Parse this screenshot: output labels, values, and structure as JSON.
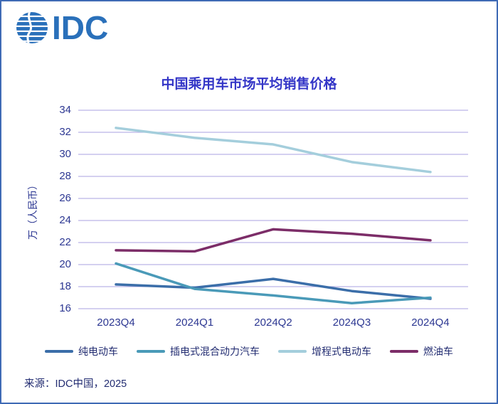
{
  "header": {
    "logo_text": "IDC"
  },
  "chart_data": {
    "type": "line",
    "title": "中国乘用车市场平均销售价格",
    "ylabel": "万（人民币）",
    "categories": [
      "2023Q4",
      "2024Q1",
      "2024Q2",
      "2024Q3",
      "2024Q4"
    ],
    "ylim": [
      16,
      34
    ],
    "ytick_step": 2,
    "grid": "horizontal",
    "legend_position": "bottom",
    "series": [
      {
        "name": "纯电动车",
        "color": "#3b6ea9",
        "values": [
          18.2,
          17.9,
          18.7,
          17.6,
          16.9
        ]
      },
      {
        "name": "插电式混合动力汽车",
        "color": "#4a9ab8",
        "values": [
          20.1,
          17.8,
          17.2,
          16.5,
          17.0
        ]
      },
      {
        "name": "增程式电动车",
        "color": "#a4cedc",
        "values": [
          32.4,
          31.5,
          30.9,
          29.3,
          28.4
        ]
      },
      {
        "name": "燃油车",
        "color": "#7c2d68",
        "values": [
          21.3,
          21.2,
          23.2,
          22.8,
          22.2
        ]
      }
    ],
    "colors": {
      "title": "#3436c7",
      "axis_text": "#2c3792",
      "gridline": "#bab4e6",
      "legend_text": "#232d72"
    }
  },
  "footer": {
    "source": "来源：IDC中国，2025"
  },
  "frame": {
    "border_color": "#3f6ab5",
    "logo_color": "#2a70ba"
  }
}
